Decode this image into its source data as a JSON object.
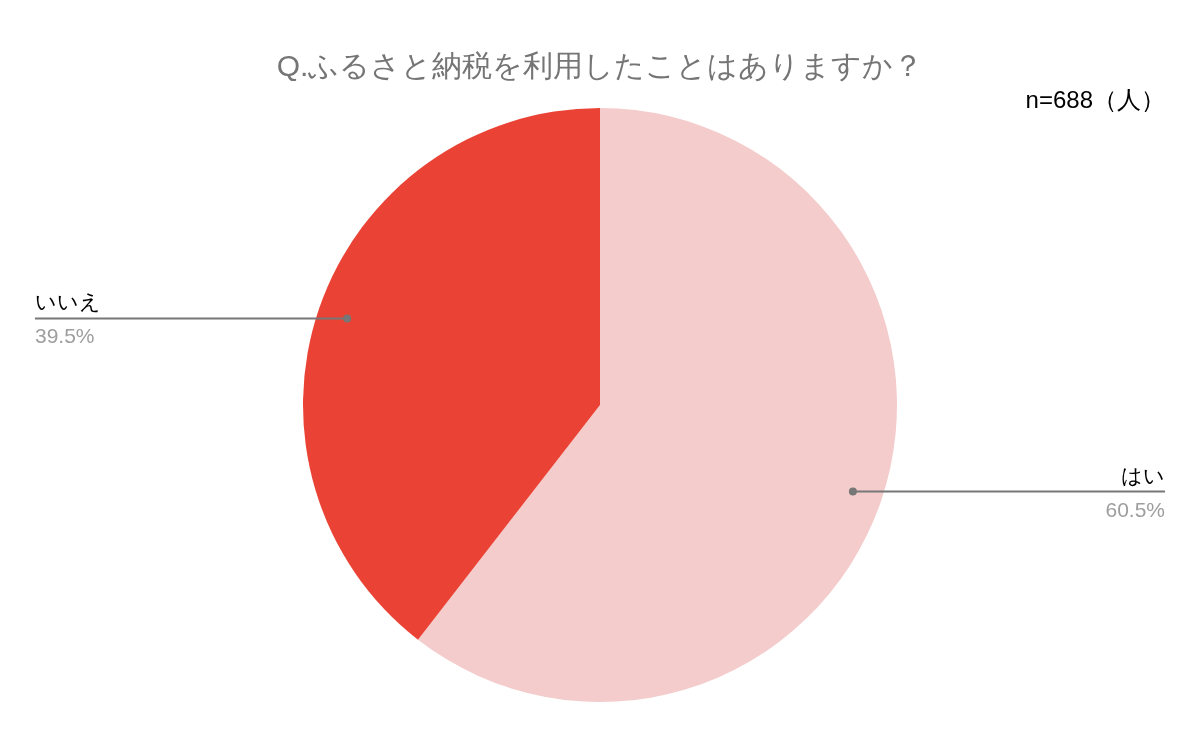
{
  "chart_data": {
    "type": "pie",
    "title": "Q.ふるさと納税を利用したことはありますか？",
    "annotations": [
      "n=688（人）"
    ],
    "categories": [
      "はい",
      "いいえ"
    ],
    "values": [
      60.5,
      39.5
    ],
    "colors": [
      "#f4cccc",
      "#ea4335"
    ],
    "value_labels": [
      "60.5%",
      "39.5%"
    ]
  }
}
